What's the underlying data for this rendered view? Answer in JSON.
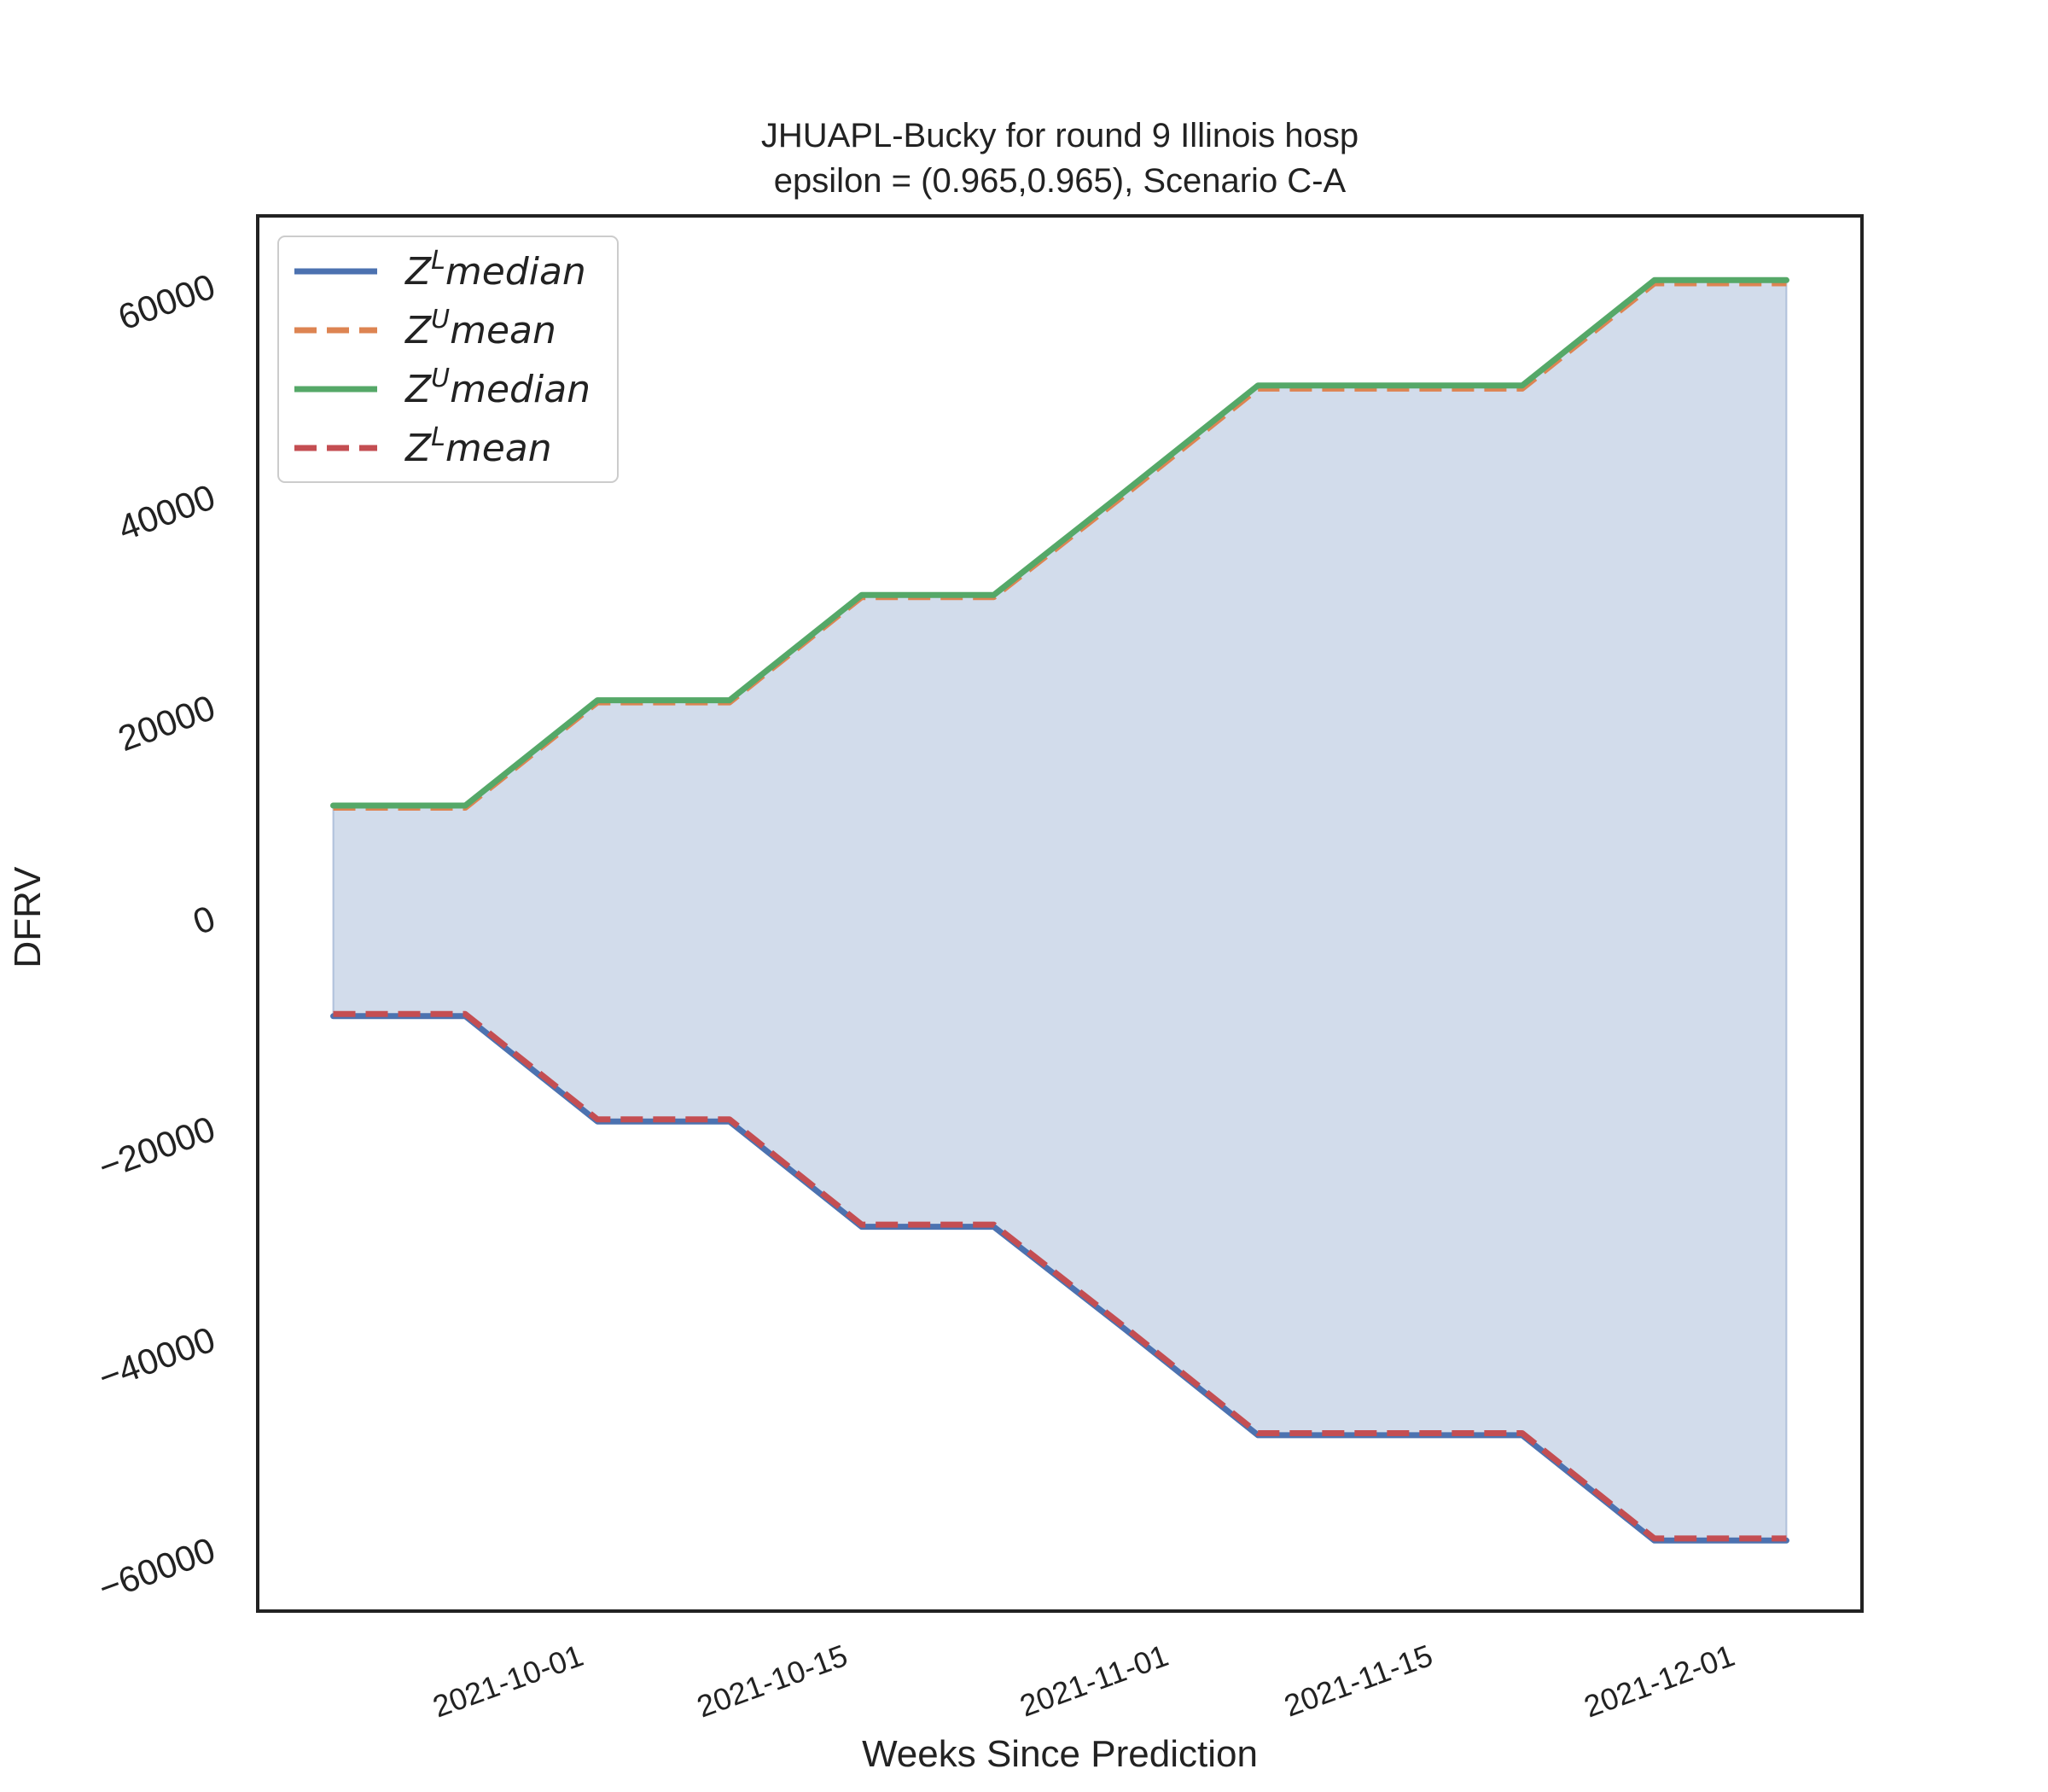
{
  "chart_data": {
    "type": "line",
    "title": "JHUAPL-Bucky for round 9 Illinois  hosp",
    "subtitle": "epsilon = (0.965,0.965), Scenario C-A",
    "xlabel": "Weeks Since Prediction",
    "ylabel": "DFRV",
    "x": [
      "2021-09-18",
      "2021-09-25",
      "2021-10-02",
      "2021-10-09",
      "2021-10-16",
      "2021-10-23",
      "2021-10-30",
      "2021-11-06",
      "2021-11-13",
      "2021-11-20",
      "2021-11-27",
      "2021-12-04"
    ],
    "x_ticks": [
      "2021-10-01",
      "2021-10-15",
      "2021-11-01",
      "2021-11-15",
      "2021-12-01"
    ],
    "y_ticks": [
      60000,
      40000,
      20000,
      0,
      -20000,
      -40000,
      -60000
    ],
    "y_tick_labels": [
      "60000",
      "40000",
      "20000",
      "0",
      "−20000",
      "−40000",
      "−60000"
    ],
    "xlim": [
      "2021-09-14",
      "2021-12-08"
    ],
    "ylim": [
      -66000,
      66500
    ],
    "grid": false,
    "legend_position": "top-left",
    "series": [
      {
        "name": "median",
        "sup": "L",
        "color": "#4c72b0",
        "dash": "solid",
        "values": [
          -9500,
          -9500,
          -19500,
          -19500,
          -29500,
          -29500,
          -39300,
          -49300,
          -49300,
          -49300,
          -59300,
          -59300
        ]
      },
      {
        "name": "mean",
        "sup": "U",
        "color": "#dd8452",
        "dash": "dashed",
        "values": [
          10300,
          10300,
          20300,
          20300,
          30300,
          30300,
          40100,
          50100,
          50100,
          50100,
          60100,
          60100
        ]
      },
      {
        "name": "median",
        "sup": "U",
        "color": "#55a868",
        "dash": "solid",
        "values": [
          10500,
          10500,
          20500,
          20500,
          30500,
          30500,
          40400,
          50400,
          50400,
          50400,
          60400,
          60400
        ]
      },
      {
        "name": "mean",
        "sup": "L",
        "color": "#c44e52",
        "dash": "dashed",
        "values": [
          -9300,
          -9300,
          -19300,
          -19300,
          -29300,
          -29300,
          -39100,
          -49100,
          -49100,
          -49100,
          -59100,
          -59100
        ]
      }
    ],
    "fill": {
      "upper": 2,
      "lower": 0,
      "color": "#4c72b0",
      "opacity": 0.25
    },
    "legend_label_prefix": "Z"
  }
}
